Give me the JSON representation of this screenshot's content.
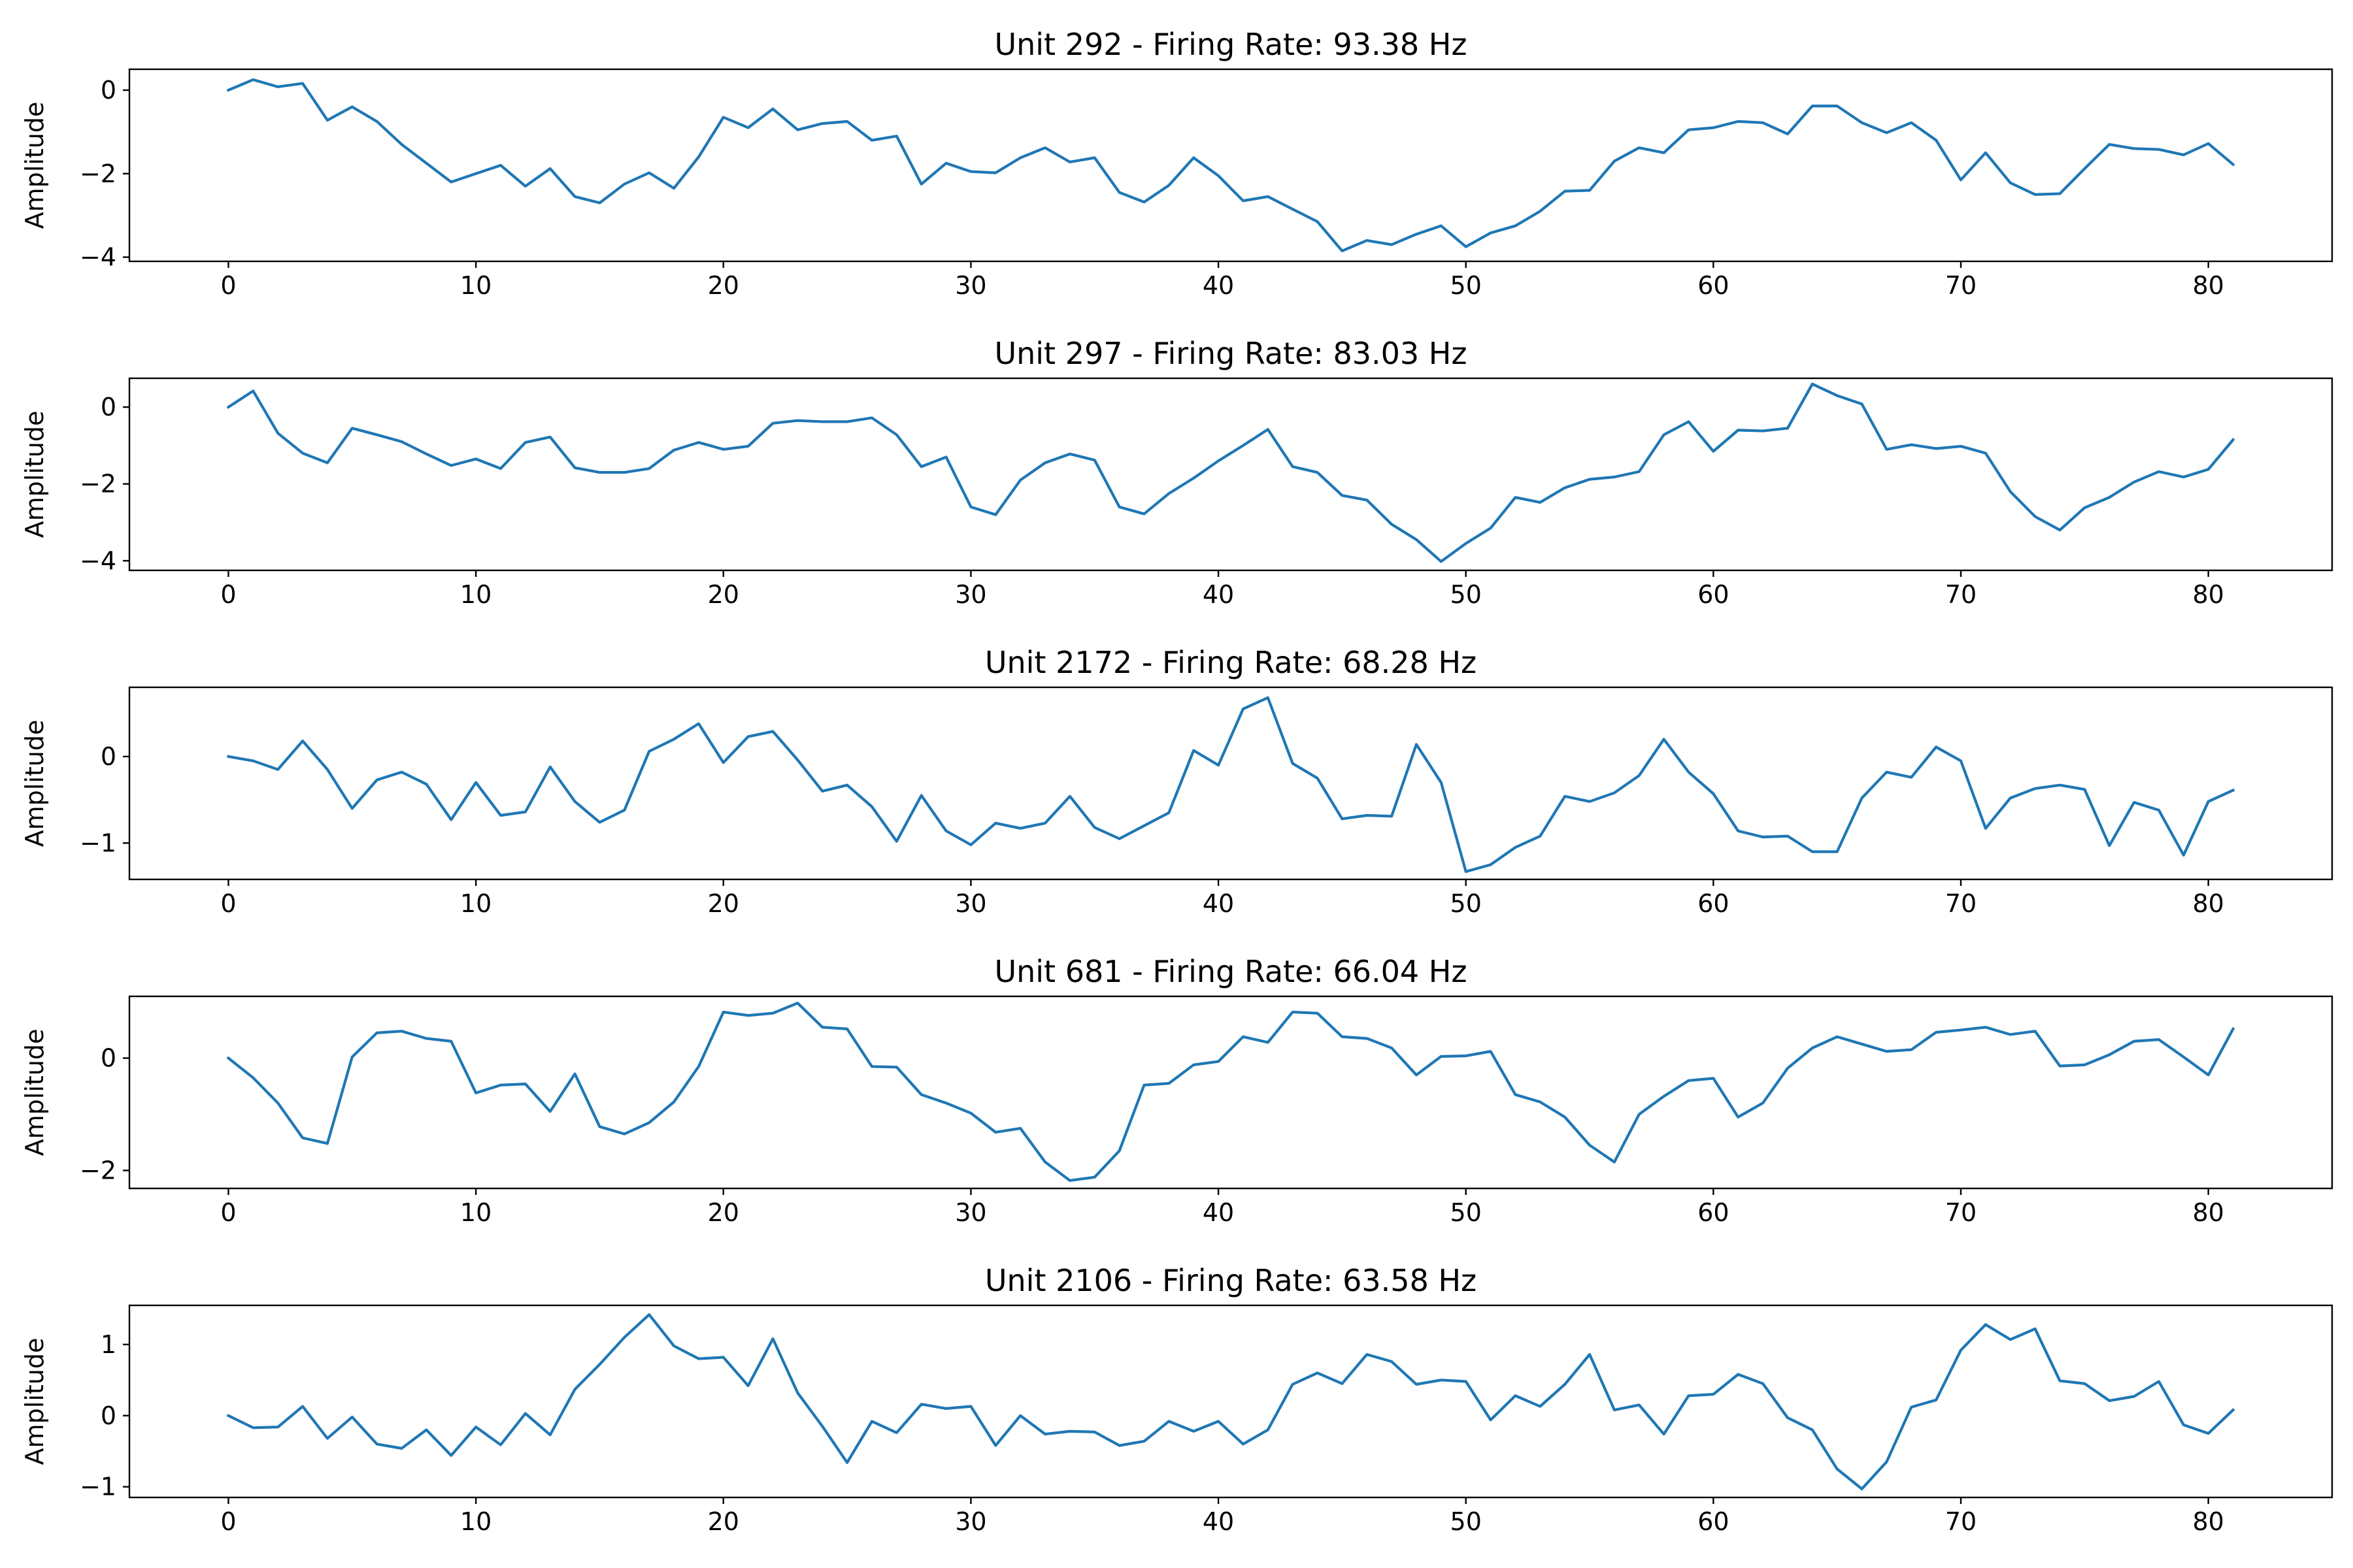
{
  "chart_data": [
    {
      "type": "line",
      "title": "Unit 292 - Firing Rate: 93.38 Hz",
      "xlabel": "",
      "ylabel": "Amplitude",
      "xlim": [
        -4,
        85
      ],
      "ylim": [
        -4.1,
        0.5
      ],
      "xticks": [
        0,
        10,
        20,
        30,
        40,
        50,
        60,
        70,
        80
      ],
      "yticks": [
        0,
        -2,
        -4
      ],
      "color": "#1f77b4",
      "x": [
        0,
        1,
        2,
        3,
        4,
        5,
        6,
        7,
        8,
        9,
        10,
        11,
        12,
        13,
        14,
        15,
        16,
        17,
        18,
        19,
        20,
        21,
        22,
        23,
        24,
        25,
        26,
        27,
        28,
        29,
        30,
        31,
        32,
        33,
        34,
        35,
        36,
        37,
        38,
        39,
        40,
        41,
        42,
        43,
        44,
        45,
        46,
        47,
        48,
        49,
        50,
        51,
        52,
        53,
        54,
        55,
        56,
        57,
        58,
        59,
        60,
        61,
        62,
        63,
        64,
        65,
        66,
        67,
        68,
        69,
        70,
        71,
        72,
        73,
        74,
        75,
        76,
        77,
        78,
        79,
        80,
        81
      ],
      "values": [
        0.0,
        0.25,
        0.08,
        0.16,
        -0.72,
        -0.4,
        -0.75,
        -1.3,
        -1.75,
        -2.2,
        -2.0,
        -1.8,
        -2.3,
        -1.88,
        -2.55,
        -2.7,
        -2.25,
        -1.98,
        -2.35,
        -1.6,
        -0.65,
        -0.9,
        -0.45,
        -0.95,
        -0.8,
        -0.75,
        -1.2,
        -1.1,
        -2.25,
        -1.75,
        -1.95,
        -1.98,
        -1.62,
        -1.38,
        -1.72,
        -1.62,
        -2.45,
        -2.68,
        -2.28,
        -1.62,
        -2.05,
        -2.65,
        -2.55,
        -2.85,
        -3.15,
        -3.85,
        -3.6,
        -3.7,
        -3.45,
        -3.25,
        -3.75,
        -3.42,
        -3.25,
        -2.9,
        -2.42,
        -2.4,
        -1.7,
        -1.38,
        -1.5,
        -0.95,
        -0.9,
        -0.75,
        -0.78,
        -1.05,
        -0.38,
        -0.38,
        -0.78,
        -1.02,
        -0.78,
        -1.2,
        -2.15,
        -1.5,
        -2.22,
        -2.5,
        -2.48,
        -1.88,
        -1.3,
        -1.4,
        -1.42,
        -1.55,
        -1.28,
        -1.78
      ]
    },
    {
      "type": "line",
      "title": "Unit 297 - Firing Rate: 83.03 Hz",
      "xlabel": "",
      "ylabel": "Amplitude",
      "xlim": [
        -4,
        85
      ],
      "ylim": [
        -4.25,
        0.75
      ],
      "xticks": [
        0,
        10,
        20,
        30,
        40,
        50,
        60,
        70,
        80
      ],
      "yticks": [
        0,
        -2,
        -4
      ],
      "color": "#1f77b4",
      "x": [
        0,
        1,
        2,
        3,
        4,
        5,
        6,
        7,
        8,
        9,
        10,
        11,
        12,
        13,
        14,
        15,
        16,
        17,
        18,
        19,
        20,
        21,
        22,
        23,
        24,
        25,
        26,
        27,
        28,
        29,
        30,
        31,
        32,
        33,
        34,
        35,
        36,
        37,
        38,
        39,
        40,
        41,
        42,
        43,
        44,
        45,
        46,
        47,
        48,
        49,
        50,
        51,
        52,
        53,
        54,
        55,
        56,
        57,
        58,
        59,
        60,
        61,
        62,
        63,
        64,
        65,
        66,
        67,
        68,
        69,
        70,
        71,
        72,
        73,
        74,
        75,
        76,
        77,
        78,
        79,
        80,
        81
      ],
      "values": [
        0.0,
        0.42,
        -0.68,
        -1.2,
        -1.45,
        -0.55,
        -0.72,
        -0.9,
        -1.22,
        -1.52,
        -1.35,
        -1.6,
        -0.92,
        -0.78,
        -1.58,
        -1.7,
        -1.7,
        -1.6,
        -1.12,
        -0.92,
        -1.1,
        -1.02,
        -0.42,
        -0.35,
        -0.38,
        -0.38,
        -0.28,
        -0.72,
        -1.55,
        -1.3,
        -2.6,
        -2.8,
        -1.9,
        -1.45,
        -1.22,
        -1.38,
        -2.6,
        -2.78,
        -2.25,
        -1.85,
        -1.4,
        -1.0,
        -0.58,
        -1.55,
        -1.7,
        -2.3,
        -2.42,
        -3.05,
        -3.45,
        -4.02,
        -3.55,
        -3.15,
        -2.35,
        -2.48,
        -2.1,
        -1.88,
        -1.82,
        -1.68,
        -0.72,
        -0.38,
        -1.15,
        -0.6,
        -0.62,
        -0.55,
        0.6,
        0.3,
        0.08,
        -1.1,
        -0.98,
        -1.08,
        -1.02,
        -1.2,
        -2.2,
        -2.85,
        -3.2,
        -2.62,
        -2.35,
        -1.95,
        -1.68,
        -1.82,
        -1.62,
        -0.85
      ]
    },
    {
      "type": "line",
      "title": "Unit 2172 - Firing Rate: 68.28 Hz",
      "xlabel": "",
      "ylabel": "Amplitude",
      "xlim": [
        -4,
        85
      ],
      "ylim": [
        -1.42,
        0.8
      ],
      "xticks": [
        0,
        10,
        20,
        30,
        40,
        50,
        60,
        70,
        80
      ],
      "yticks": [
        0,
        -1
      ],
      "color": "#1f77b4",
      "x": [
        0,
        1,
        2,
        3,
        4,
        5,
        6,
        7,
        8,
        9,
        10,
        11,
        12,
        13,
        14,
        15,
        16,
        17,
        18,
        19,
        20,
        21,
        22,
        23,
        24,
        25,
        26,
        27,
        28,
        29,
        30,
        31,
        32,
        33,
        34,
        35,
        36,
        37,
        38,
        39,
        40,
        41,
        42,
        43,
        44,
        45,
        46,
        47,
        48,
        49,
        50,
        51,
        52,
        53,
        54,
        55,
        56,
        57,
        58,
        59,
        60,
        61,
        62,
        63,
        64,
        65,
        66,
        67,
        68,
        69,
        70,
        71,
        72,
        73,
        74,
        75,
        76,
        77,
        78,
        79,
        80,
        81
      ],
      "values": [
        0.0,
        -0.05,
        -0.15,
        0.18,
        -0.15,
        -0.6,
        -0.27,
        -0.18,
        -0.32,
        -0.73,
        -0.3,
        -0.68,
        -0.64,
        -0.12,
        -0.52,
        -0.76,
        -0.62,
        0.06,
        0.2,
        0.38,
        -0.07,
        0.23,
        0.29,
        -0.04,
        -0.4,
        -0.33,
        -0.58,
        -0.98,
        -0.45,
        -0.86,
        -1.02,
        -0.77,
        -0.83,
        -0.77,
        -0.46,
        -0.82,
        -0.95,
        -0.8,
        -0.65,
        0.07,
        -0.1,
        0.55,
        0.68,
        -0.08,
        -0.25,
        -0.72,
        -0.68,
        -0.69,
        0.14,
        -0.3,
        -1.33,
        -1.25,
        -1.05,
        -0.92,
        -0.46,
        -0.52,
        -0.42,
        -0.22,
        0.2,
        -0.18,
        -0.43,
        -0.86,
        -0.93,
        -0.92,
        -1.1,
        -1.1,
        -0.48,
        -0.18,
        -0.24,
        0.11,
        -0.05,
        -0.83,
        -0.48,
        -0.37,
        -0.33,
        -0.38,
        -1.03,
        -0.53,
        -0.62,
        -1.14,
        -0.52,
        -0.39
      ]
    },
    {
      "type": "line",
      "title": "Unit 681 - Firing Rate: 66.04 Hz",
      "xlabel": "",
      "ylabel": "Amplitude",
      "xlim": [
        -4,
        85
      ],
      "ylim": [
        -2.32,
        1.1
      ],
      "xticks": [
        0,
        10,
        20,
        30,
        40,
        50,
        60,
        70,
        80
      ],
      "yticks": [
        0,
        -2
      ],
      "color": "#1f77b4",
      "x": [
        0,
        1,
        2,
        3,
        4,
        5,
        6,
        7,
        8,
        9,
        10,
        11,
        12,
        13,
        14,
        15,
        16,
        17,
        18,
        19,
        20,
        21,
        22,
        23,
        24,
        25,
        26,
        27,
        28,
        29,
        30,
        31,
        32,
        33,
        34,
        35,
        36,
        37,
        38,
        39,
        40,
        41,
        42,
        43,
        44,
        45,
        46,
        47,
        48,
        49,
        50,
        51,
        52,
        53,
        54,
        55,
        56,
        57,
        58,
        59,
        60,
        61,
        62,
        63,
        64,
        65,
        66,
        67,
        68,
        69,
        70,
        71,
        72,
        73,
        74,
        75,
        76,
        77,
        78,
        79,
        80,
        81
      ],
      "values": [
        0.0,
        -0.35,
        -0.8,
        -1.42,
        -1.52,
        0.02,
        0.45,
        0.48,
        0.35,
        0.3,
        -0.62,
        -0.48,
        -0.46,
        -0.95,
        -0.28,
        -1.22,
        -1.35,
        -1.15,
        -0.78,
        -0.15,
        0.82,
        0.76,
        0.8,
        0.98,
        0.55,
        0.52,
        -0.15,
        -0.16,
        -0.65,
        -0.8,
        -0.98,
        -1.32,
        -1.25,
        -1.85,
        -2.18,
        -2.12,
        -1.65,
        -0.48,
        -0.45,
        -0.12,
        -0.06,
        0.38,
        0.28,
        0.82,
        0.8,
        0.38,
        0.35,
        0.18,
        -0.3,
        0.03,
        0.04,
        0.12,
        -0.65,
        -0.78,
        -1.05,
        -1.55,
        -1.85,
        -1.0,
        -0.68,
        -0.4,
        -0.36,
        -1.05,
        -0.8,
        -0.18,
        0.18,
        0.38,
        0.25,
        0.12,
        0.15,
        0.46,
        0.5,
        0.55,
        0.42,
        0.48,
        -0.14,
        -0.12,
        0.06,
        0.3,
        0.33,
        0.02,
        -0.3,
        0.52
      ]
    },
    {
      "type": "line",
      "title": "Unit 2106 - Firing Rate: 63.58 Hz",
      "xlabel": "",
      "ylabel": "Amplitude",
      "xlim": [
        -4,
        85
      ],
      "ylim": [
        -1.15,
        1.55
      ],
      "xticks": [
        0,
        10,
        20,
        30,
        40,
        50,
        60,
        70,
        80
      ],
      "yticks": [
        1,
        0,
        -1
      ],
      "color": "#1f77b4",
      "x": [
        0,
        1,
        2,
        3,
        4,
        5,
        6,
        7,
        8,
        9,
        10,
        11,
        12,
        13,
        14,
        15,
        16,
        17,
        18,
        19,
        20,
        21,
        22,
        23,
        24,
        25,
        26,
        27,
        28,
        29,
        30,
        31,
        32,
        33,
        34,
        35,
        36,
        37,
        38,
        39,
        40,
        41,
        42,
        43,
        44,
        45,
        46,
        47,
        48,
        49,
        50,
        51,
        52,
        53,
        54,
        55,
        56,
        57,
        58,
        59,
        60,
        61,
        62,
        63,
        64,
        65,
        66,
        67,
        68,
        69,
        70,
        71,
        72,
        73,
        74,
        75,
        76,
        77,
        78,
        79,
        80,
        81
      ],
      "values": [
        0.0,
        -0.17,
        -0.16,
        0.13,
        -0.32,
        -0.02,
        -0.4,
        -0.46,
        -0.2,
        -0.56,
        -0.16,
        -0.41,
        0.03,
        -0.27,
        0.37,
        0.72,
        1.1,
        1.42,
        0.98,
        0.8,
        0.82,
        0.42,
        1.08,
        0.32,
        -0.15,
        -0.66,
        -0.08,
        -0.24,
        0.16,
        0.1,
        0.13,
        -0.42,
        0.0,
        -0.26,
        -0.22,
        -0.23,
        -0.42,
        -0.36,
        -0.08,
        -0.22,
        -0.08,
        -0.4,
        -0.2,
        0.44,
        0.6,
        0.45,
        0.86,
        0.76,
        0.44,
        0.5,
        0.48,
        -0.06,
        0.28,
        0.13,
        0.44,
        0.86,
        0.08,
        0.15,
        -0.26,
        0.28,
        0.3,
        0.58,
        0.45,
        -0.03,
        -0.2,
        -0.75,
        -1.03,
        -0.65,
        0.12,
        0.22,
        0.92,
        1.28,
        1.07,
        1.22,
        0.49,
        0.45,
        0.21,
        0.27,
        0.48,
        -0.13,
        -0.25,
        0.08
      ]
    }
  ]
}
